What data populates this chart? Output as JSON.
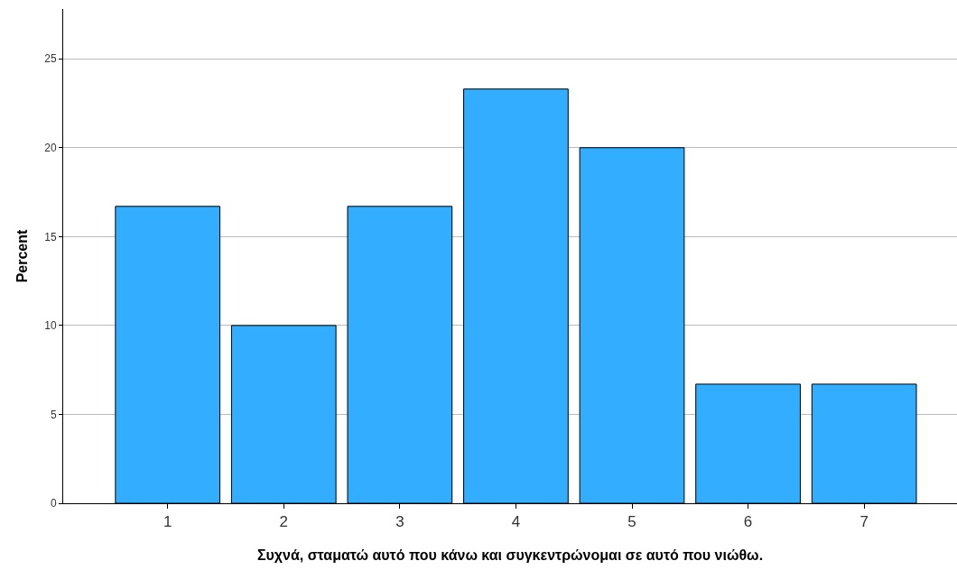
{
  "chart_data": {
    "type": "bar",
    "xlabel": "Συχνά, σταματώ αυτό που κάνω και συγκεντρώνομαι σε αυτό που νιώθω.",
    "ylabel": "Percent",
    "categories": [
      "1",
      "2",
      "3",
      "4",
      "5",
      "6",
      "7"
    ],
    "values": [
      16.7,
      10,
      16.7,
      23.3,
      20,
      6.7,
      6.7
    ],
    "color": "#33adff",
    "ylim": [
      0,
      27.8
    ],
    "yticks": [
      0,
      5,
      10,
      15,
      20,
      25
    ],
    "grid": "y"
  }
}
